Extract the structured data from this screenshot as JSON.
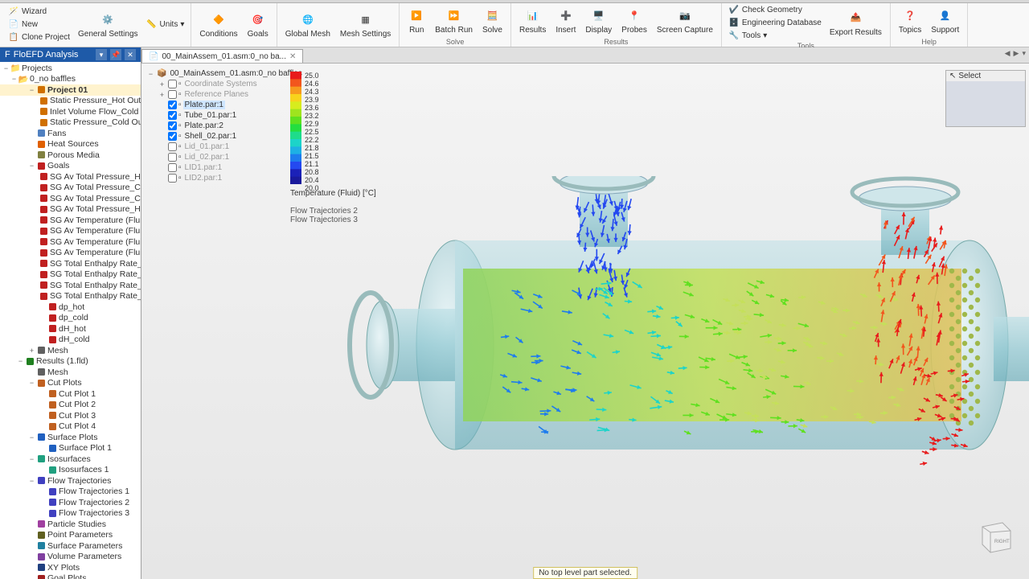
{
  "ribbon": {
    "groups": {
      "file": {
        "wizard": "Wizard",
        "new": "New",
        "clone": "Clone Project"
      },
      "settings": {
        "general": "General\nSettings",
        "units": "Units"
      },
      "cond": {
        "conditions": "Conditions",
        "goals": "Goals"
      },
      "mesh": {
        "global": "Global\nMesh",
        "msettings": "Mesh\nSettings"
      },
      "solve": {
        "run": "Run",
        "batch": "Batch\nRun",
        "solve": "Solve",
        "label": "Solve"
      },
      "results": {
        "results": "Results",
        "insert": "Insert",
        "display": "Display",
        "probes": "Probes",
        "screen": "Screen\nCapture",
        "label": "Results"
      },
      "tools": {
        "check": "Check Geometry",
        "engdb": "Engineering Database",
        "tools": "Tools",
        "export": "Export\nResults",
        "label": "Tools"
      },
      "help": {
        "topics": "Topics",
        "support": "Support",
        "label": "Help"
      }
    }
  },
  "panel": {
    "title": "FloEFD Analysis",
    "projects": "Projects",
    "root": "0_no baffles"
  },
  "tree": [
    {
      "d": 1,
      "t": "Project 01",
      "b": true,
      "tw": "−",
      "i": "proj"
    },
    {
      "d": 2,
      "t": "Static Pressure_Hot Out",
      "i": "bc"
    },
    {
      "d": 2,
      "t": "Inlet Volume Flow_Cold In",
      "i": "bc"
    },
    {
      "d": 2,
      "t": "Static Pressure_Cold Out",
      "i": "bc"
    },
    {
      "d": 1,
      "t": "Fans",
      "i": "fan"
    },
    {
      "d": 1,
      "t": "Heat Sources",
      "i": "heat"
    },
    {
      "d": 1,
      "t": "Porous Media",
      "i": "porous"
    },
    {
      "d": 1,
      "t": "Goals",
      "tw": "−",
      "i": "goal"
    },
    {
      "d": 2,
      "t": "SG Av Total Pressure_Hot In",
      "i": "sg"
    },
    {
      "d": 2,
      "t": "SG Av Total Pressure_Cold O",
      "i": "sg"
    },
    {
      "d": 2,
      "t": "SG Av Total Pressure_Cold In",
      "i": "sg"
    },
    {
      "d": 2,
      "t": "SG Av Total Pressure_Hot O",
      "i": "sg"
    },
    {
      "d": 2,
      "t": "SG Av Temperature (Fluid)_H",
      "i": "sg"
    },
    {
      "d": 2,
      "t": "SG Av Temperature (Fluid)_C",
      "i": "sg"
    },
    {
      "d": 2,
      "t": "SG Av Temperature (Fluid)_H",
      "i": "sg"
    },
    {
      "d": 2,
      "t": "SG Av Temperature (Fluid)_C",
      "i": "sg"
    },
    {
      "d": 2,
      "t": "SG Total Enthalpy Rate_Hot",
      "i": "sg"
    },
    {
      "d": 2,
      "t": "SG Total Enthalpy Rate_Cold",
      "i": "sg"
    },
    {
      "d": 2,
      "t": "SG Total Enthalpy Rate_Cold",
      "i": "sg"
    },
    {
      "d": 2,
      "t": "SG Total Enthalpy Rate_Hot",
      "i": "sg"
    },
    {
      "d": 2,
      "t": "dp_hot",
      "i": "sg"
    },
    {
      "d": 2,
      "t": "dp_cold",
      "i": "sg"
    },
    {
      "d": 2,
      "t": "dH_hot",
      "i": "sg"
    },
    {
      "d": 2,
      "t": "dH_cold",
      "i": "sg"
    },
    {
      "d": 1,
      "t": "Mesh",
      "tw": "+",
      "i": "mesh"
    },
    {
      "d": 0,
      "t": "Results (1.fld)",
      "tw": "−",
      "i": "res"
    },
    {
      "d": 1,
      "t": "Mesh",
      "i": "mesh"
    },
    {
      "d": 1,
      "t": "Cut Plots",
      "tw": "−",
      "i": "cut"
    },
    {
      "d": 2,
      "t": "Cut Plot 1",
      "i": "cp"
    },
    {
      "d": 2,
      "t": "Cut Plot 2",
      "i": "cp"
    },
    {
      "d": 2,
      "t": "Cut Plot 3",
      "i": "cp"
    },
    {
      "d": 2,
      "t": "Cut Plot 4",
      "i": "cp"
    },
    {
      "d": 1,
      "t": "Surface Plots",
      "tw": "−",
      "i": "surf"
    },
    {
      "d": 2,
      "t": "Surface Plot 1",
      "i": "sp"
    },
    {
      "d": 1,
      "t": "Isosurfaces",
      "tw": "−",
      "i": "iso"
    },
    {
      "d": 2,
      "t": "Isosurfaces 1",
      "i": "is"
    },
    {
      "d": 1,
      "t": "Flow Trajectories",
      "tw": "−",
      "i": "flow"
    },
    {
      "d": 2,
      "t": "Flow Trajectories 1",
      "i": "ft"
    },
    {
      "d": 2,
      "t": "Flow Trajectories 2",
      "i": "ft"
    },
    {
      "d": 2,
      "t": "Flow Trajectories 3",
      "i": "ft"
    },
    {
      "d": 1,
      "t": "Particle Studies",
      "i": "ps"
    },
    {
      "d": 1,
      "t": "Point Parameters",
      "i": "pp"
    },
    {
      "d": 1,
      "t": "Surface Parameters",
      "i": "srp"
    },
    {
      "d": 1,
      "t": "Volume Parameters",
      "i": "vp"
    },
    {
      "d": 1,
      "t": "XY Plots",
      "i": "xy"
    },
    {
      "d": 1,
      "t": "Goal Plots",
      "i": "gp"
    }
  ],
  "doc": {
    "tab": "00_MainAssem_01.asm:0_no ba...",
    "breadcrumb": "00_MainAssem_01.asm:0_no baffles"
  },
  "overlay": [
    {
      "d": 0,
      "t": "Coordinate Systems",
      "dim": true,
      "chk": false,
      "sq": true
    },
    {
      "d": 0,
      "t": "Reference Planes",
      "dim": true,
      "chk": false,
      "sq": true
    },
    {
      "d": 0,
      "t": "Plate.par:1",
      "chk": true,
      "hl": true
    },
    {
      "d": 0,
      "t": "Tube_01.par:1",
      "chk": true
    },
    {
      "d": 0,
      "t": "Plate.par:2",
      "chk": true
    },
    {
      "d": 0,
      "t": "Shell_02.par:1",
      "chk": true
    },
    {
      "d": 0,
      "t": "Lid_01.par:1",
      "dim": true,
      "chk": false
    },
    {
      "d": 0,
      "t": "Lid_02.par:1",
      "dim": true,
      "chk": false
    },
    {
      "d": 0,
      "t": "LID1.par:1",
      "dim": true,
      "chk": false
    },
    {
      "d": 0,
      "t": "LID2.par:1",
      "dim": true,
      "chk": false
    }
  ],
  "legend": {
    "title": "Temperature (Fluid) [°C]",
    "ticks": [
      "25.0",
      "24.6",
      "24.3",
      "23.9",
      "23.6",
      "23.2",
      "22.9",
      "22.5",
      "22.2",
      "21.8",
      "21.5",
      "21.1",
      "20.8",
      "20.4",
      "20.0"
    ],
    "colors": [
      "#e81b1b",
      "#f2561d",
      "#f79a1e",
      "#f8d31c",
      "#d7ec1e",
      "#9fe41e",
      "#5fe01f",
      "#24de3f",
      "#1edc8b",
      "#1cd4c9",
      "#1eb0e4",
      "#1e7ced",
      "#2449f0",
      "#1b21b8",
      "#1a1a9c"
    ]
  },
  "traj": {
    "a": "Flow Trajectories 2",
    "b": "Flow Trajectories 3"
  },
  "status": "No top level part selected.",
  "select": "Select",
  "axis": {
    "right": "RIGHT"
  },
  "iconColor": {
    "proj": "#d07000",
    "bc": "#d07000",
    "fan": "#5080c0",
    "heat": "#e06000",
    "porous": "#808040",
    "goal": "#c02020",
    "sg": "#c02020",
    "mesh": "#606060",
    "res": "#208020",
    "cut": "#c06020",
    "cp": "#c06020",
    "surf": "#2060c0",
    "sp": "#2060c0",
    "iso": "#20a080",
    "is": "#20a080",
    "flow": "#4040c0",
    "ft": "#4040c0",
    "ps": "#a040a0",
    "pp": "#606020",
    "srp": "#2080a0",
    "vp": "#8040a0",
    "xy": "#204080",
    "gp": "#a02020"
  }
}
